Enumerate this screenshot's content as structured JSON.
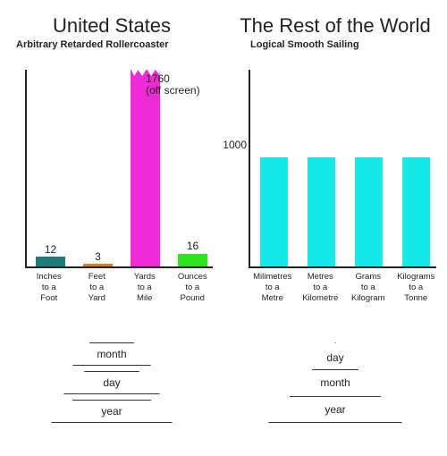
{
  "left": {
    "title": "United States",
    "subtitle": "Arbitrary Retarded Rollercoaster",
    "chart": {
      "type": "bar",
      "display_max": 250,
      "background_color": "#ffffff",
      "axis_color": "#222222",
      "off_screen": {
        "index": 2,
        "label_line1": "1760",
        "label_line2": "(off screen)"
      },
      "bars": [
        {
          "cat_l1": "Inches",
          "cat_l2": "to a",
          "cat_l3": "Foot",
          "value": 12,
          "value_label": "12",
          "color": "#1e7a7a"
        },
        {
          "cat_l1": "Feet",
          "cat_l2": "to a",
          "cat_l3": "Yard",
          "value": 3,
          "value_label": "3",
          "color": "#e97424"
        },
        {
          "cat_l1": "Yards",
          "cat_l2": "to a",
          "cat_l3": "Mile",
          "value": 1760,
          "value_label": "",
          "color": "#ef2bd7"
        },
        {
          "cat_l1": "Ounces",
          "cat_l2": "to a",
          "cat_l3": "Pound",
          "value": 16,
          "value_label": "16",
          "color": "#2fe21f"
        }
      ]
    },
    "date": {
      "style": "split",
      "rows": [
        "month",
        "day",
        "year"
      ]
    }
  },
  "right": {
    "title": "The Rest of the World",
    "subtitle": "Logical Smooth Sailing",
    "chart": {
      "type": "bar",
      "display_max": 1800,
      "background_color": "#ffffff",
      "axis_color": "#222222",
      "ytick": {
        "value": 1000,
        "label": "1000"
      },
      "bars": [
        {
          "cat_l1": "Milimetres",
          "cat_l2": "to a",
          "cat_l3": "Metre",
          "value": 1000,
          "color": "#17e8e8"
        },
        {
          "cat_l1": "Metres",
          "cat_l2": "to a",
          "cat_l3": "Kilometre",
          "value": 1000,
          "color": "#17e8e8"
        },
        {
          "cat_l1": "Grams",
          "cat_l2": "to a",
          "cat_l3": "Kilogram",
          "value": 1000,
          "color": "#17e8e8"
        },
        {
          "cat_l1": "Kilograms",
          "cat_l2": "to a",
          "cat_l3": "Tonne",
          "value": 1000,
          "color": "#17e8e8"
        }
      ]
    },
    "date": {
      "style": "pyramid",
      "rows": [
        "day",
        "month",
        "year"
      ]
    }
  }
}
